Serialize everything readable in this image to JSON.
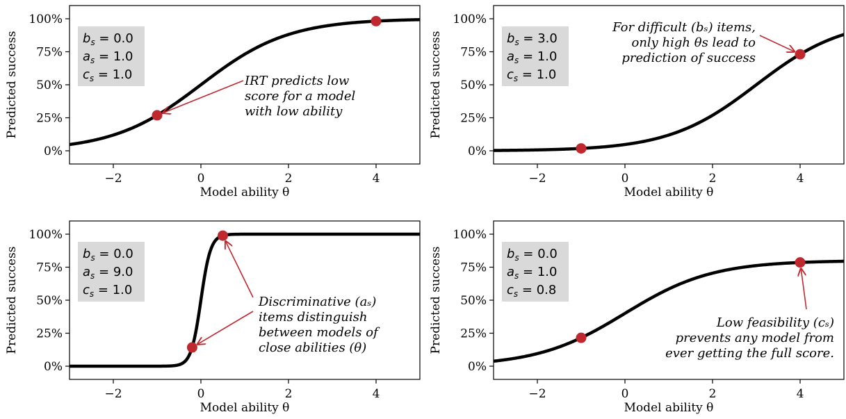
{
  "colors": {
    "curve": "#000000",
    "marker": "#c0282f",
    "param_box": "#d9d9d9",
    "arrow": "#c0282f"
  },
  "chart_data": [
    {
      "type": "line",
      "xlabel": "Model ability θ",
      "ylabel": "Predicted success",
      "xlim": [
        -3,
        5
      ],
      "ylim": [
        -0.1,
        1.1
      ],
      "x_ticks": [
        -2,
        0,
        2,
        4
      ],
      "x_tick_labels": [
        "−2",
        "0",
        "2",
        "4"
      ],
      "y_ticks": [
        0,
        0.25,
        0.5,
        0.75,
        1.0
      ],
      "y_tick_labels": [
        "0%",
        "25%",
        "50%",
        "75%",
        "100%"
      ],
      "params": {
        "b": 0.0,
        "a": 1.0,
        "c": 1.0
      },
      "param_labels": {
        "b": "0.0",
        "a": "1.0",
        "c": "1.0"
      },
      "points": [
        {
          "x": -1,
          "y": 0.269
        },
        {
          "x": 4,
          "y": 0.982
        }
      ],
      "annotation": {
        "lines": [
          "IRT predicts low",
          "score for a model",
          "with low ability"
        ],
        "points_to": [
          0
        ]
      }
    },
    {
      "type": "line",
      "xlabel": "Model ability θ",
      "ylabel": "Predicted success",
      "xlim": [
        -3,
        5
      ],
      "ylim": [
        -0.1,
        1.1
      ],
      "x_ticks": [
        -2,
        0,
        2,
        4
      ],
      "x_tick_labels": [
        "−2",
        "0",
        "2",
        "4"
      ],
      "y_ticks": [
        0,
        0.25,
        0.5,
        0.75,
        1.0
      ],
      "y_tick_labels": [
        "0%",
        "25%",
        "50%",
        "75%",
        "100%"
      ],
      "params": {
        "b": 3.0,
        "a": 1.0,
        "c": 1.0
      },
      "param_labels": {
        "b": "3.0",
        "a": "1.0",
        "c": "1.0"
      },
      "points": [
        {
          "x": -1,
          "y": 0.018
        },
        {
          "x": 4,
          "y": 0.731
        }
      ],
      "annotation": {
        "lines": [
          "For difficult (bₛ) items,",
          "only high θs lead to",
          "prediction of success"
        ],
        "points_to": [
          1
        ]
      }
    },
    {
      "type": "line",
      "xlabel": "Model ability θ",
      "ylabel": "Predicted success",
      "xlim": [
        -3,
        5
      ],
      "ylim": [
        -0.1,
        1.1
      ],
      "x_ticks": [
        -2,
        0,
        2,
        4
      ],
      "x_tick_labels": [
        "−2",
        "0",
        "2",
        "4"
      ],
      "y_ticks": [
        0,
        0.25,
        0.5,
        0.75,
        1.0
      ],
      "y_tick_labels": [
        "0%",
        "25%",
        "50%",
        "75%",
        "100%"
      ],
      "params": {
        "b": 0.0,
        "a": 9.0,
        "c": 1.0
      },
      "param_labels": {
        "b": "0.0",
        "a": "9.0",
        "c": "1.0"
      },
      "points": [
        {
          "x": -0.2,
          "y": 0.142
        },
        {
          "x": 0.5,
          "y": 0.989
        }
      ],
      "annotation": {
        "lines": [
          "Discriminative (aₛ)",
          "items distinguish",
          "between models of",
          "close abilities (θ)"
        ],
        "points_to": [
          0,
          1
        ]
      }
    },
    {
      "type": "line",
      "xlabel": "Model ability θ",
      "ylabel": "Predicted success",
      "xlim": [
        -3,
        5
      ],
      "ylim": [
        -0.1,
        1.1
      ],
      "x_ticks": [
        -2,
        0,
        2,
        4
      ],
      "x_tick_labels": [
        "−2",
        "0",
        "2",
        "4"
      ],
      "y_ticks": [
        0,
        0.25,
        0.5,
        0.75,
        1.0
      ],
      "y_tick_labels": [
        "0%",
        "25%",
        "50%",
        "75%",
        "100%"
      ],
      "params": {
        "b": 0.0,
        "a": 1.0,
        "c": 0.8
      },
      "param_labels": {
        "b": "0.0",
        "a": "1.0",
        "c": "0.8"
      },
      "points": [
        {
          "x": -1,
          "y": 0.215
        },
        {
          "x": 4,
          "y": 0.786
        }
      ],
      "annotation": {
        "lines": [
          "Low feasibility (cₛ)",
          "prevents any model from",
          "ever getting the full score."
        ],
        "points_to": [
          1
        ]
      }
    }
  ]
}
